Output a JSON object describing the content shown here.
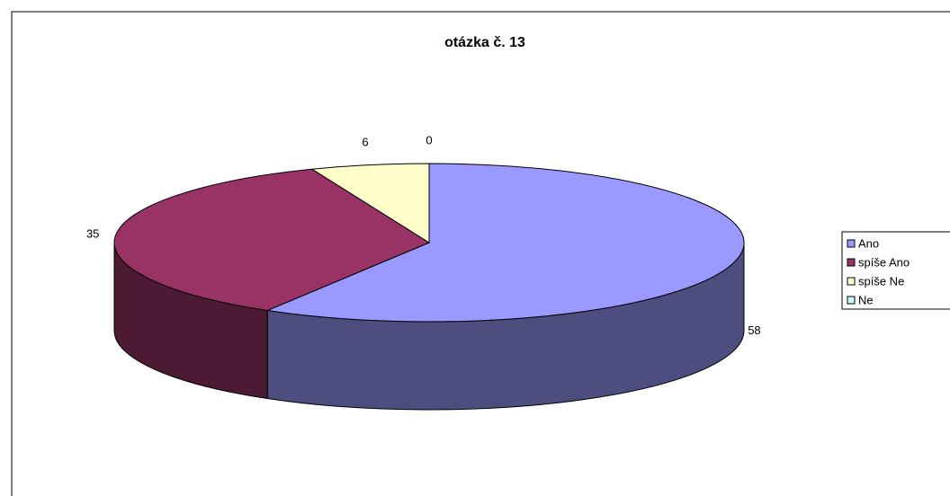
{
  "chart_data": {
    "type": "pie3d",
    "title": "otázka č. 13",
    "categories": [
      "Ano",
      "spíše Ano",
      "spíše Ne",
      "Ne"
    ],
    "values": [
      58,
      35,
      6,
      0
    ],
    "colors": [
      "#9999ff",
      "#993366",
      "#ffffcc",
      "#ccffff"
    ],
    "legend": "right"
  }
}
